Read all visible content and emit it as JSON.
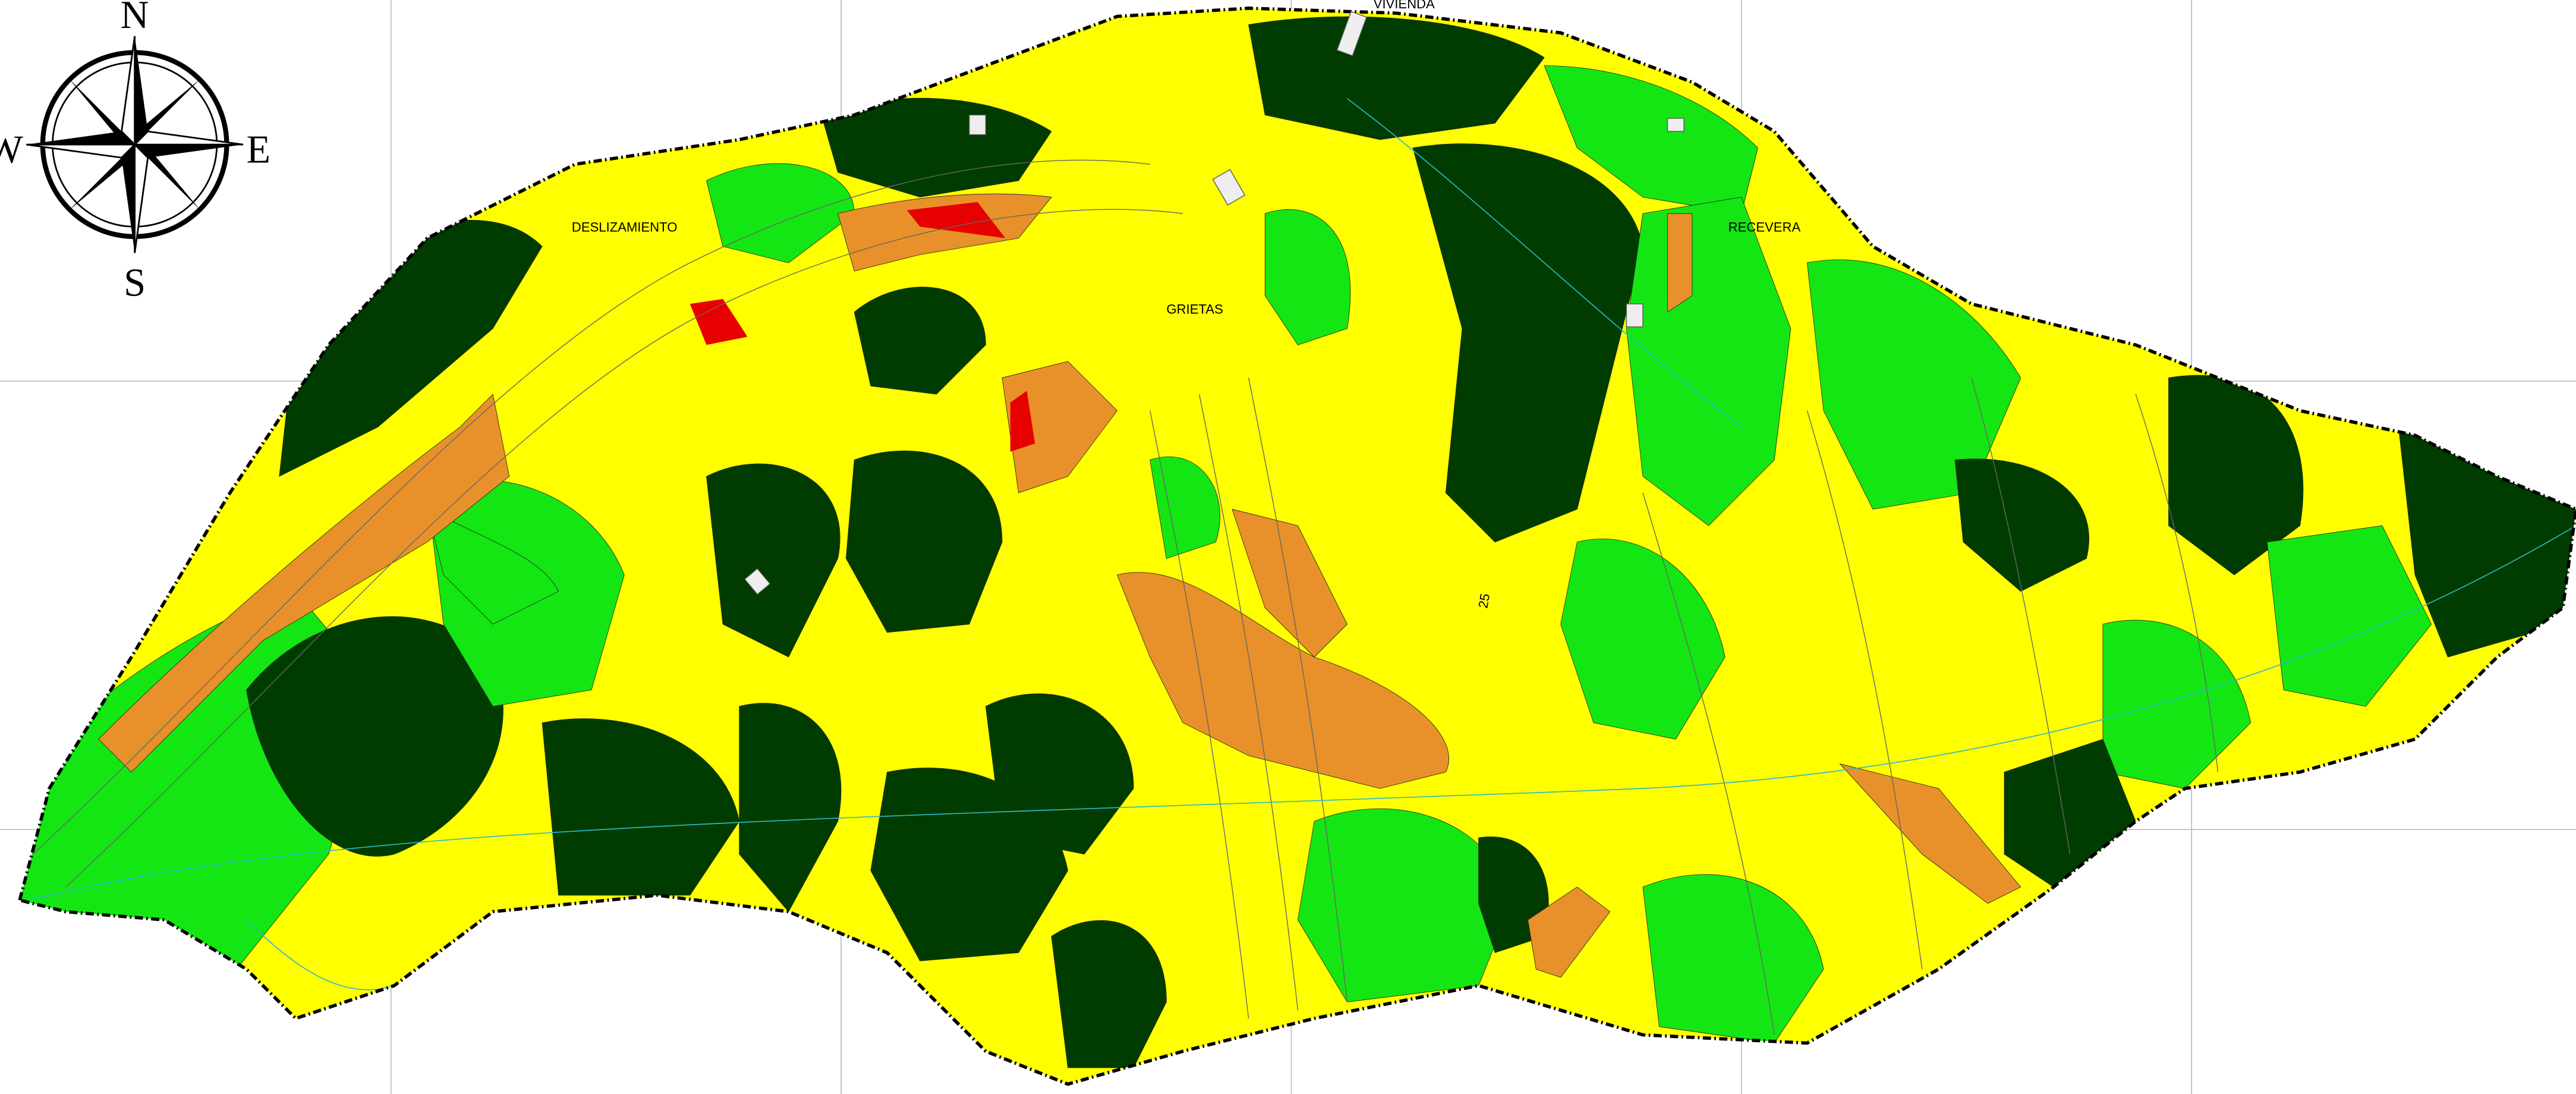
{
  "compass": {
    "north": "N",
    "south": "S",
    "east": "E",
    "west": "W"
  },
  "labels": {
    "vivienda": "VIVIENDA",
    "deslizamiento": "DESLIZAMIENTO",
    "grietas": "GRIETAS",
    "recevera": "RECEVERA",
    "contour": "25"
  }
}
